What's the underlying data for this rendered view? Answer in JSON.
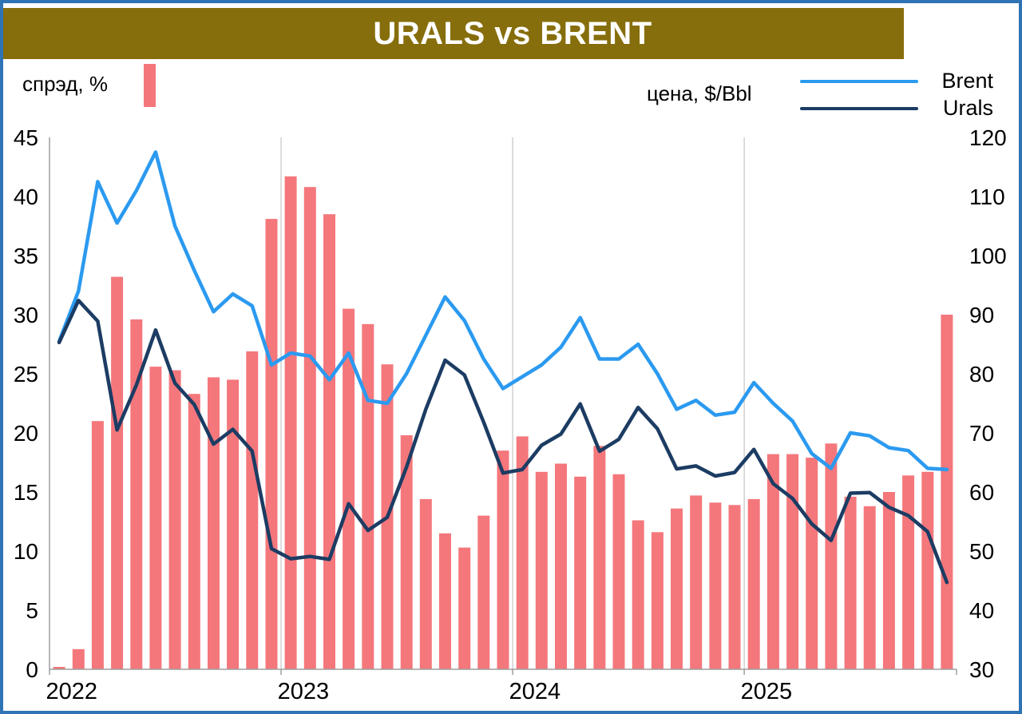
{
  "title": "URALS vs BRENT",
  "legend": {
    "spread_label": "спрэд, %",
    "price_label": "цена, $/Bbl",
    "brent_label": "Brent",
    "urals_label": "Urals"
  },
  "colors": {
    "bar": "#F4777C",
    "brent_line": "#2B9AF0",
    "urals_line": "#1C3C63",
    "title_bg": "#876E0C",
    "frame_border": "#2E74B5",
    "grid": "#D0D0D0",
    "axis": "#9E9E9E",
    "text": "#000000"
  },
  "chart_data": {
    "type": "bar+line combo",
    "granularity": "monthly bars/points, Jan 2022 through Nov 2025",
    "legend_position": "top",
    "grid": "vertical year gridlines only",
    "x_year_ticks": [
      {
        "label": "2022",
        "month_index": 0
      },
      {
        "label": "2023",
        "month_index": 12
      },
      {
        "label": "2024",
        "month_index": 24
      },
      {
        "label": "2025",
        "month_index": 36
      }
    ],
    "left_axis": {
      "title": "спрэд, %",
      "min": 0,
      "max": 45,
      "tick_step": 5,
      "ticks": [
        0,
        5,
        10,
        15,
        20,
        25,
        30,
        35,
        40,
        45
      ]
    },
    "right_axis": {
      "title": "цена, $/Bbl",
      "min": 30,
      "max": 120,
      "tick_step": 10,
      "ticks": [
        30,
        40,
        50,
        60,
        70,
        80,
        90,
        100,
        110,
        120
      ]
    },
    "series": [
      {
        "name": "спрэд, %",
        "type": "bar",
        "axis": "left",
        "color_key": "bar",
        "values": [
          0.2,
          1.7,
          21.0,
          33.2,
          29.6,
          25.6,
          25.3,
          23.3,
          24.7,
          24.5,
          26.9,
          38.1,
          41.7,
          40.8,
          38.5,
          30.5,
          29.2,
          25.8,
          19.8,
          14.4,
          11.5,
          10.3,
          13.0,
          18.5,
          19.7,
          16.7,
          17.4,
          16.3,
          18.9,
          16.5,
          12.6,
          11.6,
          13.6,
          14.7,
          14.1,
          13.9,
          14.4,
          18.2,
          18.2,
          17.9,
          19.1,
          14.6,
          13.8,
          15.0,
          16.4,
          16.7,
          30.0
        ]
      },
      {
        "name": "Brent",
        "type": "line",
        "axis": "right",
        "color_key": "brent_line",
        "values": [
          85.5,
          94,
          112.5,
          105.5,
          111,
          117.5,
          105,
          97.5,
          90.5,
          93.5,
          91.5,
          81.5,
          83.5,
          83,
          79,
          83.5,
          75.5,
          75,
          80,
          86.5,
          93,
          89,
          82.5,
          77.5,
          79.5,
          81.5,
          84.5,
          89.5,
          82.5,
          82.5,
          85,
          80,
          74,
          75.5,
          73,
          73.5,
          78.5,
          75,
          72,
          66.5,
          64,
          70,
          69.5,
          67.5,
          67,
          64,
          63.8
        ]
      },
      {
        "name": "Urals",
        "type": "line",
        "axis": "right",
        "color_key": "urals_line",
        "values": [
          85.3,
          92.4,
          88.9,
          70.5,
          78.1,
          87.4,
          78.4,
          74.8,
          68.1,
          70.6,
          66.9,
          50.4,
          48.7,
          49.1,
          48.6,
          58.0,
          53.5,
          55.7,
          64.2,
          74.0,
          82.3,
          79.8,
          71.8,
          63.2,
          63.8,
          67.9,
          69.8,
          74.9,
          66.9,
          68.9,
          74.3,
          70.7,
          63.9,
          64.4,
          62.7,
          63.3,
          67.2,
          61.4,
          58.9,
          54.6,
          51.8,
          59.8,
          59.9,
          57.4,
          56.0,
          53.3,
          44.7
        ]
      }
    ]
  }
}
